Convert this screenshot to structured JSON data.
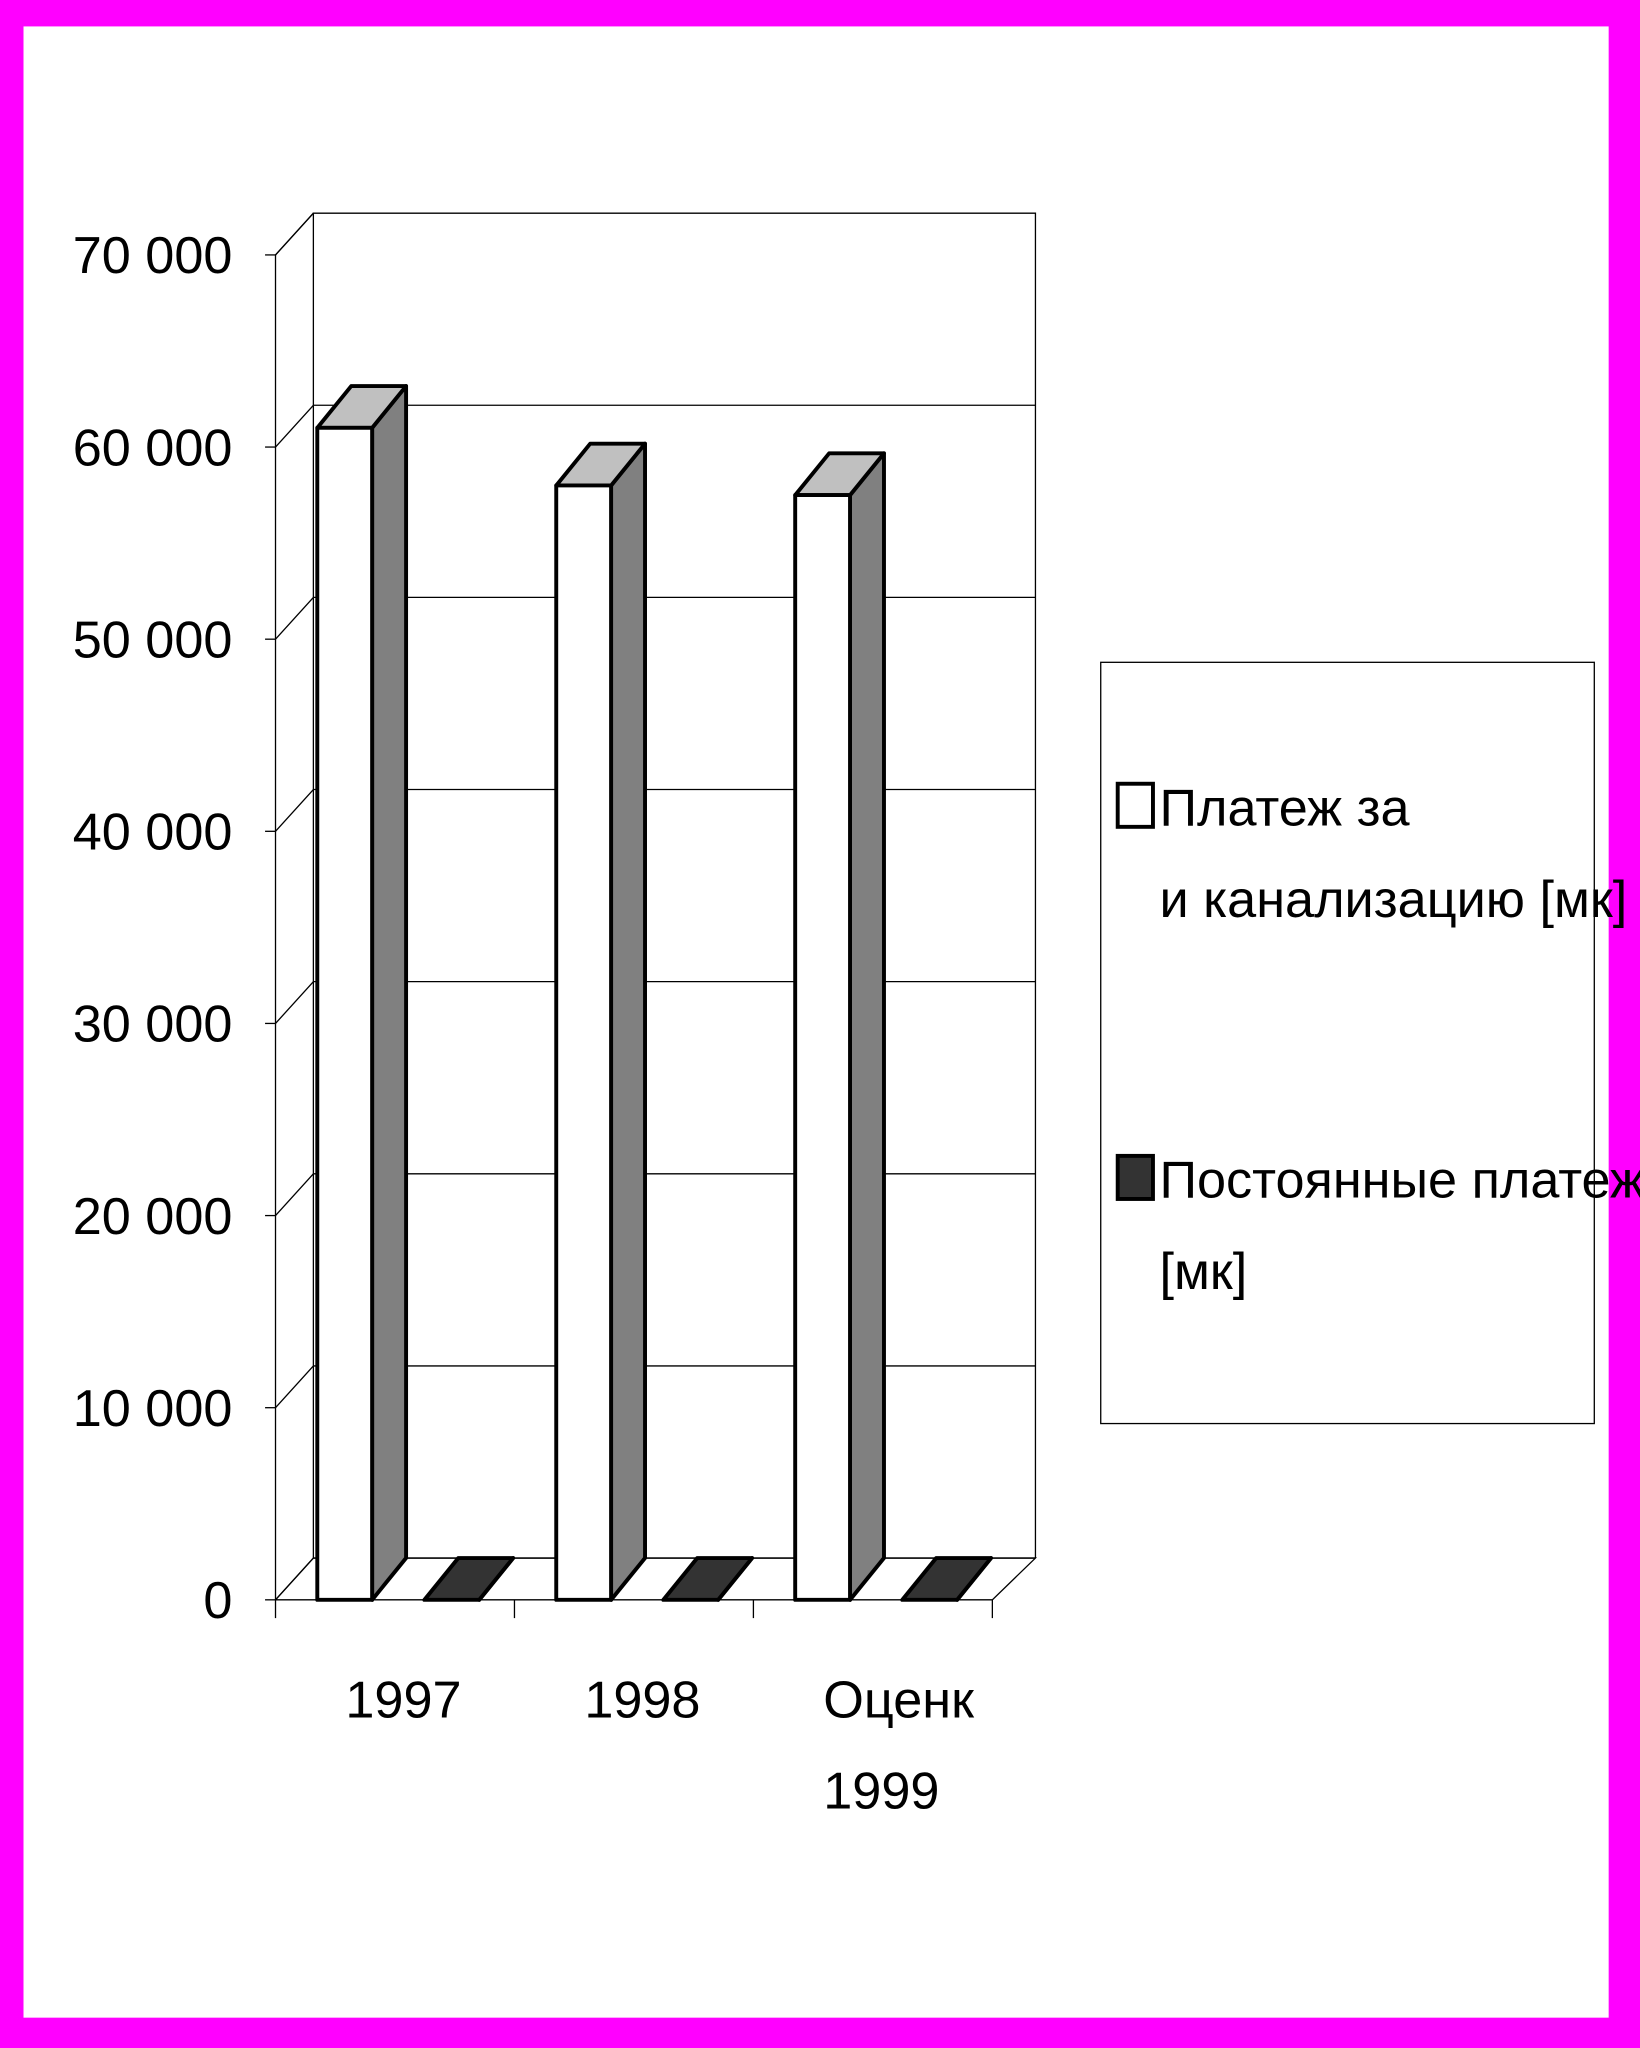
{
  "chart_data": {
    "type": "bar3d",
    "categories": [
      "1997",
      "1998",
      "Оценк\n1999"
    ],
    "series": [
      {
        "name": "Платеж за\nи канализацию [мк]",
        "color": "#ffffff",
        "values": [
          61000,
          58000,
          57500
        ]
      },
      {
        "name": "Постоянные платежи\n[мк]",
        "color": "#333333",
        "values": [
          0,
          0,
          0
        ]
      }
    ],
    "ylim": [
      0,
      70000
    ],
    "yticks": [
      0,
      {
        "value": 10000,
        "label": "10 000"
      },
      {
        "value": 20000,
        "label": "20 000"
      },
      {
        "value": 30000,
        "label": "30 000"
      },
      {
        "value": 40000,
        "label": "40 000"
      },
      {
        "value": 50000,
        "label": "50 000"
      },
      {
        "value": 60000,
        "label": "60 000"
      },
      {
        "value": 70000,
        "label": "70 000"
      }
    ],
    "grid": true,
    "legend": "right"
  }
}
